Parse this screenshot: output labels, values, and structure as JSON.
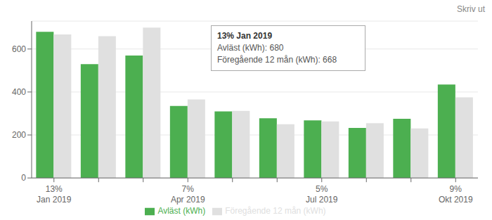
{
  "chart_data": {
    "type": "bar",
    "categories": [
      "13%\nJan 2019",
      null,
      null,
      "7%\nApr 2019",
      null,
      null,
      "5%\nJul 2019",
      null,
      null,
      "9%\nOkt 2019"
    ],
    "series": [
      {
        "name": "Avläst (kWh)",
        "color": "#4caf50",
        "values": [
          680,
          530,
          570,
          335,
          310,
          278,
          268,
          233,
          275,
          435
        ]
      },
      {
        "name": "Föregående 12 mån (kWh)",
        "color": "#e0e0e0",
        "values": [
          668,
          660,
          700,
          365,
          312,
          250,
          263,
          255,
          230,
          375
        ]
      }
    ],
    "ylim": [
      0,
      730
    ],
    "yticks": [
      0,
      200,
      400,
      600
    ],
    "grid": true,
    "legend": "bottom",
    "annotations": [
      "13% Jan 2019",
      "Avläst (kWh): 680",
      "Föregående 12 mån (kWh): 668",
      "Skriv ut"
    ]
  }
}
